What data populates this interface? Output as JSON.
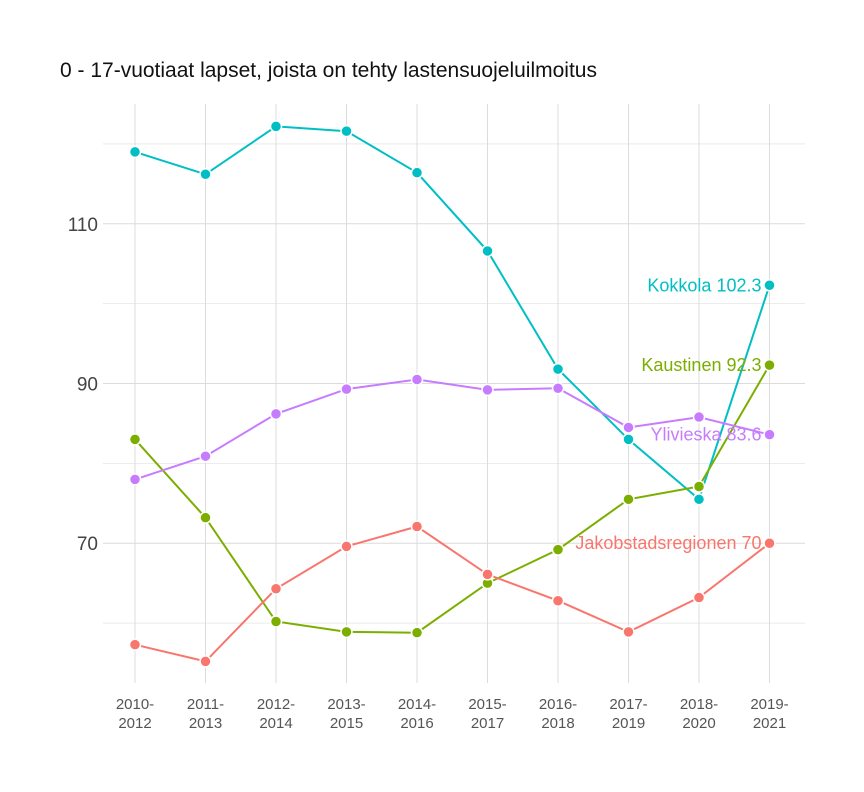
{
  "chart_data": {
    "type": "line",
    "title": "0 - 17-vuotiaat lapset, joista on tehty lastensuojeluilmoitus",
    "xlabel": "",
    "ylabel": "",
    "categories": [
      [
        "2010-",
        "2012"
      ],
      [
        "2011-",
        "2013"
      ],
      [
        "2012-",
        "2014"
      ],
      [
        "2013-",
        "2015"
      ],
      [
        "2014-",
        "2016"
      ],
      [
        "2015-",
        "2017"
      ],
      [
        "2016-",
        "2018"
      ],
      [
        "2017-",
        "2019"
      ],
      [
        "2018-",
        "2020"
      ],
      [
        "2019-",
        "2021"
      ]
    ],
    "ylim": [
      52.5,
      125
    ],
    "yticks": [
      70,
      90,
      110
    ],
    "grid": true,
    "series": [
      {
        "name": "Kokkola",
        "end_label": "Kokkola 102.3",
        "color": "#00BFC4",
        "values": [
          119.0,
          116.2,
          122.2,
          121.6,
          116.4,
          106.6,
          91.8,
          83.0,
          75.5,
          102.3
        ]
      },
      {
        "name": "Kaustinen",
        "end_label": "Kaustinen 92.3",
        "color": "#7CAE00",
        "values": [
          83.0,
          73.2,
          60.2,
          58.9,
          58.8,
          65.0,
          69.2,
          75.5,
          77.1,
          92.3
        ]
      },
      {
        "name": "Ylivieska",
        "end_label": "Ylivieska 83.6",
        "color": "#C77CFF",
        "values": [
          78.0,
          80.9,
          86.2,
          89.3,
          90.5,
          89.2,
          89.4,
          84.5,
          85.8,
          83.6
        ]
      },
      {
        "name": "Jakobstadsregionen",
        "end_label": "Jakobstadsregionen 70",
        "color": "#F8766D",
        "values": [
          57.3,
          55.2,
          64.3,
          69.6,
          72.1,
          66.1,
          62.8,
          58.9,
          63.2,
          70.0
        ]
      }
    ]
  }
}
